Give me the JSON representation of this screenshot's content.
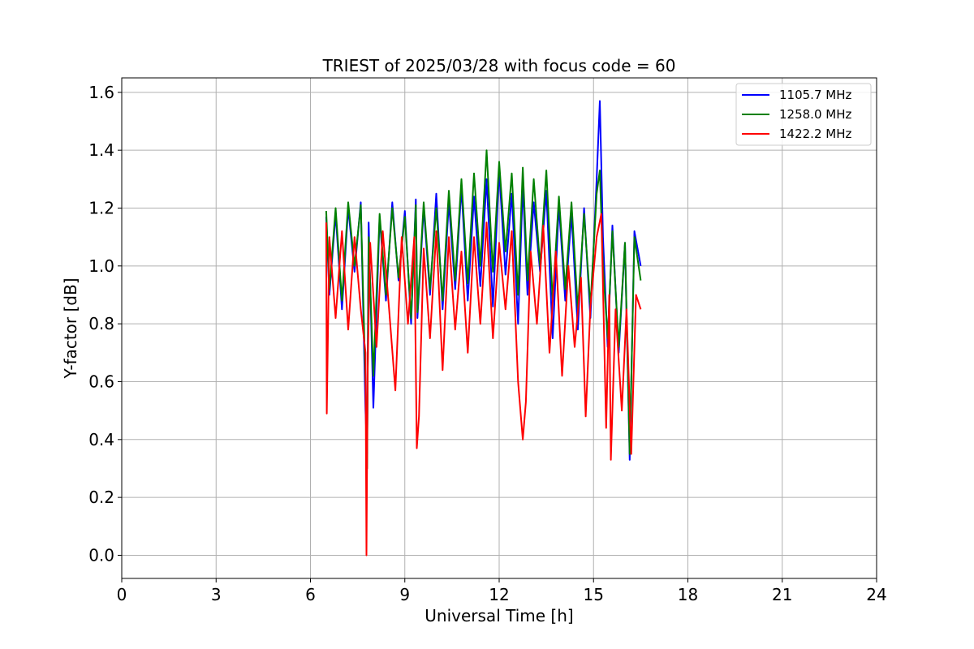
{
  "chart_data": {
    "type": "line",
    "title": "TRIEST of 2025/03/28 with focus code = 60",
    "xlabel": "Universal Time [h]",
    "ylabel": "Y-factor [dB]",
    "xlim": [
      0,
      24
    ],
    "ylim": [
      -0.08,
      1.65
    ],
    "xticks": [
      0,
      3,
      6,
      9,
      12,
      15,
      18,
      21,
      24
    ],
    "yticks": [
      0.0,
      0.2,
      0.4,
      0.6,
      0.8,
      1.0,
      1.2,
      1.4,
      1.6
    ],
    "ytick_labels": [
      "0.0",
      "0.2",
      "0.4",
      "0.6",
      "0.8",
      "1.0",
      "1.2",
      "1.4",
      "1.6"
    ],
    "grid": true,
    "legend_position": "top-right",
    "series": [
      {
        "name": "1105.7 MHz",
        "color": "#0000ff",
        "x": [
          6.5,
          6.6,
          6.8,
          7.0,
          7.2,
          7.4,
          7.6,
          7.75,
          7.8,
          7.85,
          8.0,
          8.2,
          8.4,
          8.6,
          8.8,
          9.0,
          9.2,
          9.35,
          9.4,
          9.6,
          9.8,
          10.0,
          10.2,
          10.4,
          10.6,
          10.8,
          11.0,
          11.2,
          11.4,
          11.6,
          11.8,
          12.0,
          12.2,
          12.4,
          12.6,
          12.75,
          12.9,
          13.1,
          13.3,
          13.5,
          13.7,
          13.9,
          14.1,
          14.3,
          14.5,
          14.7,
          14.9,
          15.1,
          15.2,
          15.3,
          15.45,
          15.6,
          15.8,
          16.0,
          16.15,
          16.3,
          16.5
        ],
        "y": [
          1.17,
          0.9,
          1.18,
          0.85,
          1.2,
          0.98,
          1.22,
          0.5,
          0.35,
          1.15,
          0.51,
          1.17,
          0.88,
          1.22,
          0.95,
          1.19,
          0.8,
          1.23,
          0.82,
          1.2,
          0.9,
          1.25,
          0.85,
          1.22,
          0.92,
          1.27,
          0.88,
          1.24,
          0.93,
          1.3,
          0.86,
          1.33,
          0.97,
          1.25,
          0.8,
          1.28,
          0.9,
          1.22,
          0.98,
          1.26,
          0.75,
          1.21,
          0.88,
          1.18,
          0.78,
          1.2,
          0.82,
          1.3,
          1.57,
          1.1,
          0.72,
          1.14,
          0.7,
          1.08,
          0.33,
          1.12,
          1.0
        ]
      },
      {
        "name": "1258.0 MHz",
        "color": "#008000",
        "x": [
          6.5,
          6.6,
          6.8,
          7.0,
          7.2,
          7.4,
          7.6,
          7.75,
          7.8,
          7.85,
          8.0,
          8.2,
          8.4,
          8.6,
          8.8,
          9.0,
          9.2,
          9.35,
          9.4,
          9.6,
          9.8,
          10.0,
          10.2,
          10.4,
          10.6,
          10.8,
          11.0,
          11.2,
          11.4,
          11.6,
          11.8,
          12.0,
          12.2,
          12.4,
          12.6,
          12.75,
          12.9,
          13.1,
          13.3,
          13.5,
          13.7,
          13.9,
          14.1,
          14.3,
          14.5,
          14.7,
          14.9,
          15.1,
          15.2,
          15.3,
          15.45,
          15.6,
          15.8,
          16.0,
          16.15,
          16.3,
          16.5
        ],
        "y": [
          1.19,
          0.92,
          1.2,
          0.88,
          1.22,
          1.0,
          1.21,
          0.6,
          0.3,
          1.1,
          0.62,
          1.18,
          0.9,
          1.2,
          0.96,
          1.17,
          0.82,
          1.21,
          0.84,
          1.22,
          0.92,
          1.2,
          0.88,
          1.26,
          0.95,
          1.3,
          0.94,
          1.32,
          1.0,
          1.4,
          0.98,
          1.36,
          1.05,
          1.32,
          0.9,
          1.34,
          0.95,
          1.3,
          1.0,
          1.33,
          0.88,
          1.24,
          0.92,
          1.22,
          0.85,
          1.18,
          0.86,
          1.25,
          1.33,
          1.0,
          0.75,
          1.12,
          0.72,
          1.08,
          0.35,
          1.1,
          0.95
        ]
      },
      {
        "name": "1422.2 MHz",
        "color": "#ff0000",
        "x": [
          6.5,
          6.52,
          6.6,
          6.8,
          7.0,
          7.2,
          7.4,
          7.6,
          7.75,
          7.78,
          7.82,
          7.9,
          8.1,
          8.3,
          8.5,
          8.7,
          8.9,
          9.1,
          9.3,
          9.38,
          9.45,
          9.6,
          9.8,
          10.0,
          10.2,
          10.4,
          10.6,
          10.8,
          11.0,
          11.2,
          11.4,
          11.6,
          11.8,
          12.0,
          12.2,
          12.4,
          12.6,
          12.75,
          12.85,
          13.0,
          13.2,
          13.4,
          13.6,
          13.8,
          14.0,
          14.2,
          14.4,
          14.6,
          14.75,
          14.9,
          15.1,
          15.25,
          15.4,
          15.5,
          15.55,
          15.7,
          15.9,
          16.05,
          16.2,
          16.35,
          16.5
        ],
        "y": [
          1.15,
          0.49,
          1.1,
          0.82,
          1.12,
          0.78,
          1.1,
          0.85,
          0.7,
          0.0,
          0.65,
          1.08,
          0.72,
          1.12,
          0.85,
          0.57,
          1.1,
          0.8,
          1.1,
          0.37,
          0.48,
          1.06,
          0.75,
          1.12,
          0.64,
          1.1,
          0.78,
          1.05,
          0.7,
          1.1,
          0.8,
          1.15,
          0.75,
          1.08,
          0.85,
          1.12,
          0.6,
          0.4,
          0.53,
          1.05,
          0.8,
          1.14,
          0.7,
          1.05,
          0.62,
          1.0,
          0.72,
          0.96,
          0.48,
          0.86,
          1.1,
          1.18,
          0.44,
          0.9,
          0.33,
          0.85,
          0.5,
          0.85,
          0.35,
          0.9,
          0.85
        ]
      }
    ]
  }
}
